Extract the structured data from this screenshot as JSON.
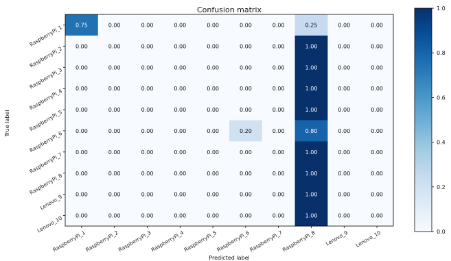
{
  "chart_data": {
    "type": "heatmap",
    "title": "Confusion matrix",
    "xlabel": "Predicted label",
    "ylabel": "True label",
    "x_categories": [
      "RaspberryPi_1",
      "RaspberryPi_2",
      "RaspberryPi_3",
      "RaspberryPi_4",
      "RaspberryPi_5",
      "RaspberryPi_6",
      "RaspberryPi_7",
      "RaspberryPi_8",
      "Lenovo_9",
      "Lenovo_10"
    ],
    "y_categories": [
      "RaspberryPi_1",
      "RaspberryPi_2",
      "RaspberryPi_3",
      "RaspberryPi_4",
      "RaspberryPi_5",
      "RaspberryPi_6",
      "RaspberryPi_7",
      "RaspberryPi_8",
      "Lenovo_9",
      "Lenovo_10"
    ],
    "values": [
      [
        0.75,
        0.0,
        0.0,
        0.0,
        0.0,
        0.0,
        0.0,
        0.25,
        0.0,
        0.0
      ],
      [
        0.0,
        0.0,
        0.0,
        0.0,
        0.0,
        0.0,
        0.0,
        1.0,
        0.0,
        0.0
      ],
      [
        0.0,
        0.0,
        0.0,
        0.0,
        0.0,
        0.0,
        0.0,
        1.0,
        0.0,
        0.0
      ],
      [
        0.0,
        0.0,
        0.0,
        0.0,
        0.0,
        0.0,
        0.0,
        1.0,
        0.0,
        0.0
      ],
      [
        0.0,
        0.0,
        0.0,
        0.0,
        0.0,
        0.0,
        0.0,
        1.0,
        0.0,
        0.0
      ],
      [
        0.0,
        0.0,
        0.0,
        0.0,
        0.0,
        0.2,
        0.0,
        0.8,
        0.0,
        0.0
      ],
      [
        0.0,
        0.0,
        0.0,
        0.0,
        0.0,
        0.0,
        0.0,
        1.0,
        0.0,
        0.0
      ],
      [
        0.0,
        0.0,
        0.0,
        0.0,
        0.0,
        0.0,
        0.0,
        1.0,
        0.0,
        0.0
      ],
      [
        0.0,
        0.0,
        0.0,
        0.0,
        0.0,
        0.0,
        0.0,
        1.0,
        0.0,
        0.0
      ],
      [
        0.0,
        0.0,
        0.0,
        0.0,
        0.0,
        0.0,
        0.0,
        1.0,
        0.0,
        0.0
      ]
    ],
    "value_format": "0.00",
    "colormap": "Blues",
    "color_low": "#f7fbff",
    "color_high": "#08306b",
    "colorbar": {
      "range": [
        0.0,
        1.0
      ],
      "ticks": [
        "0.0",
        "0.2",
        "0.4",
        "0.6",
        "0.8",
        "1.0"
      ]
    }
  }
}
